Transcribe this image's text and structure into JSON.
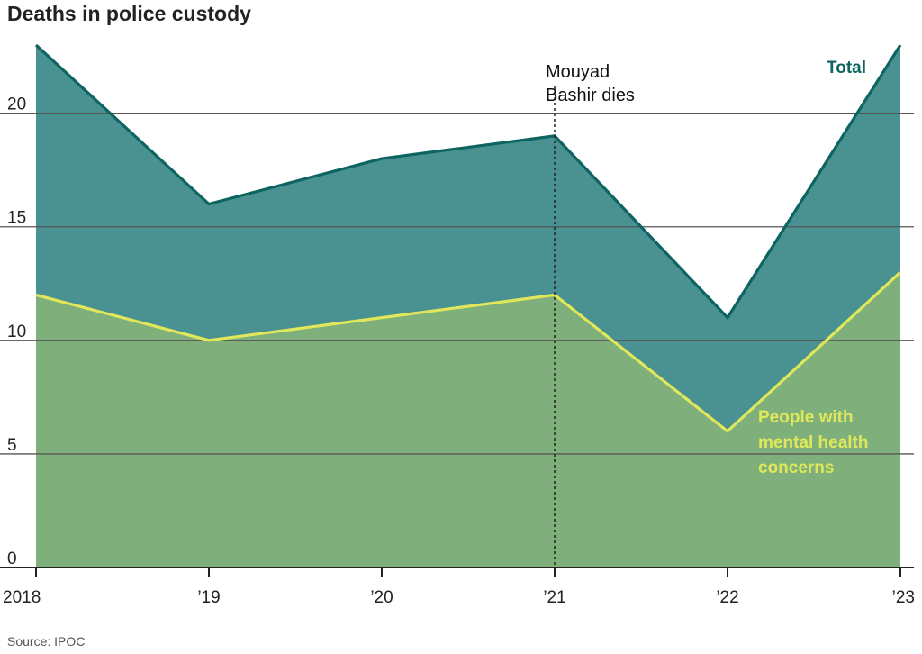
{
  "title": "Deaths in police custody",
  "source": "Source: IPOC",
  "colors": {
    "total_fill": "#4a9291",
    "total_line": "#0d6460",
    "mental_fill": "#7fb07c",
    "mental_line": "#e0e85a",
    "grid": "#555555"
  },
  "chart_data": {
    "type": "area",
    "title": "Deaths in police custody",
    "x_labels": [
      "2018",
      "’19",
      "’20",
      "’21",
      "’22",
      "’23"
    ],
    "x": [
      2018,
      2019,
      2020,
      2021,
      2022,
      2023
    ],
    "ylim": [
      0,
      23
    ],
    "yticks": [
      0,
      5,
      10,
      15,
      20
    ],
    "grid": true,
    "series": [
      {
        "name": "Total",
        "label": "Total",
        "values": [
          23,
          16,
          18,
          19,
          11,
          23
        ]
      },
      {
        "name": "People with mental health concerns",
        "label_lines": [
          "People with",
          "mental health",
          "concerns"
        ],
        "values": [
          12,
          10,
          11,
          12,
          6,
          13
        ]
      }
    ],
    "annotation": {
      "x": 2021,
      "lines": [
        "Mouyad",
        "Bashir dies"
      ]
    }
  }
}
